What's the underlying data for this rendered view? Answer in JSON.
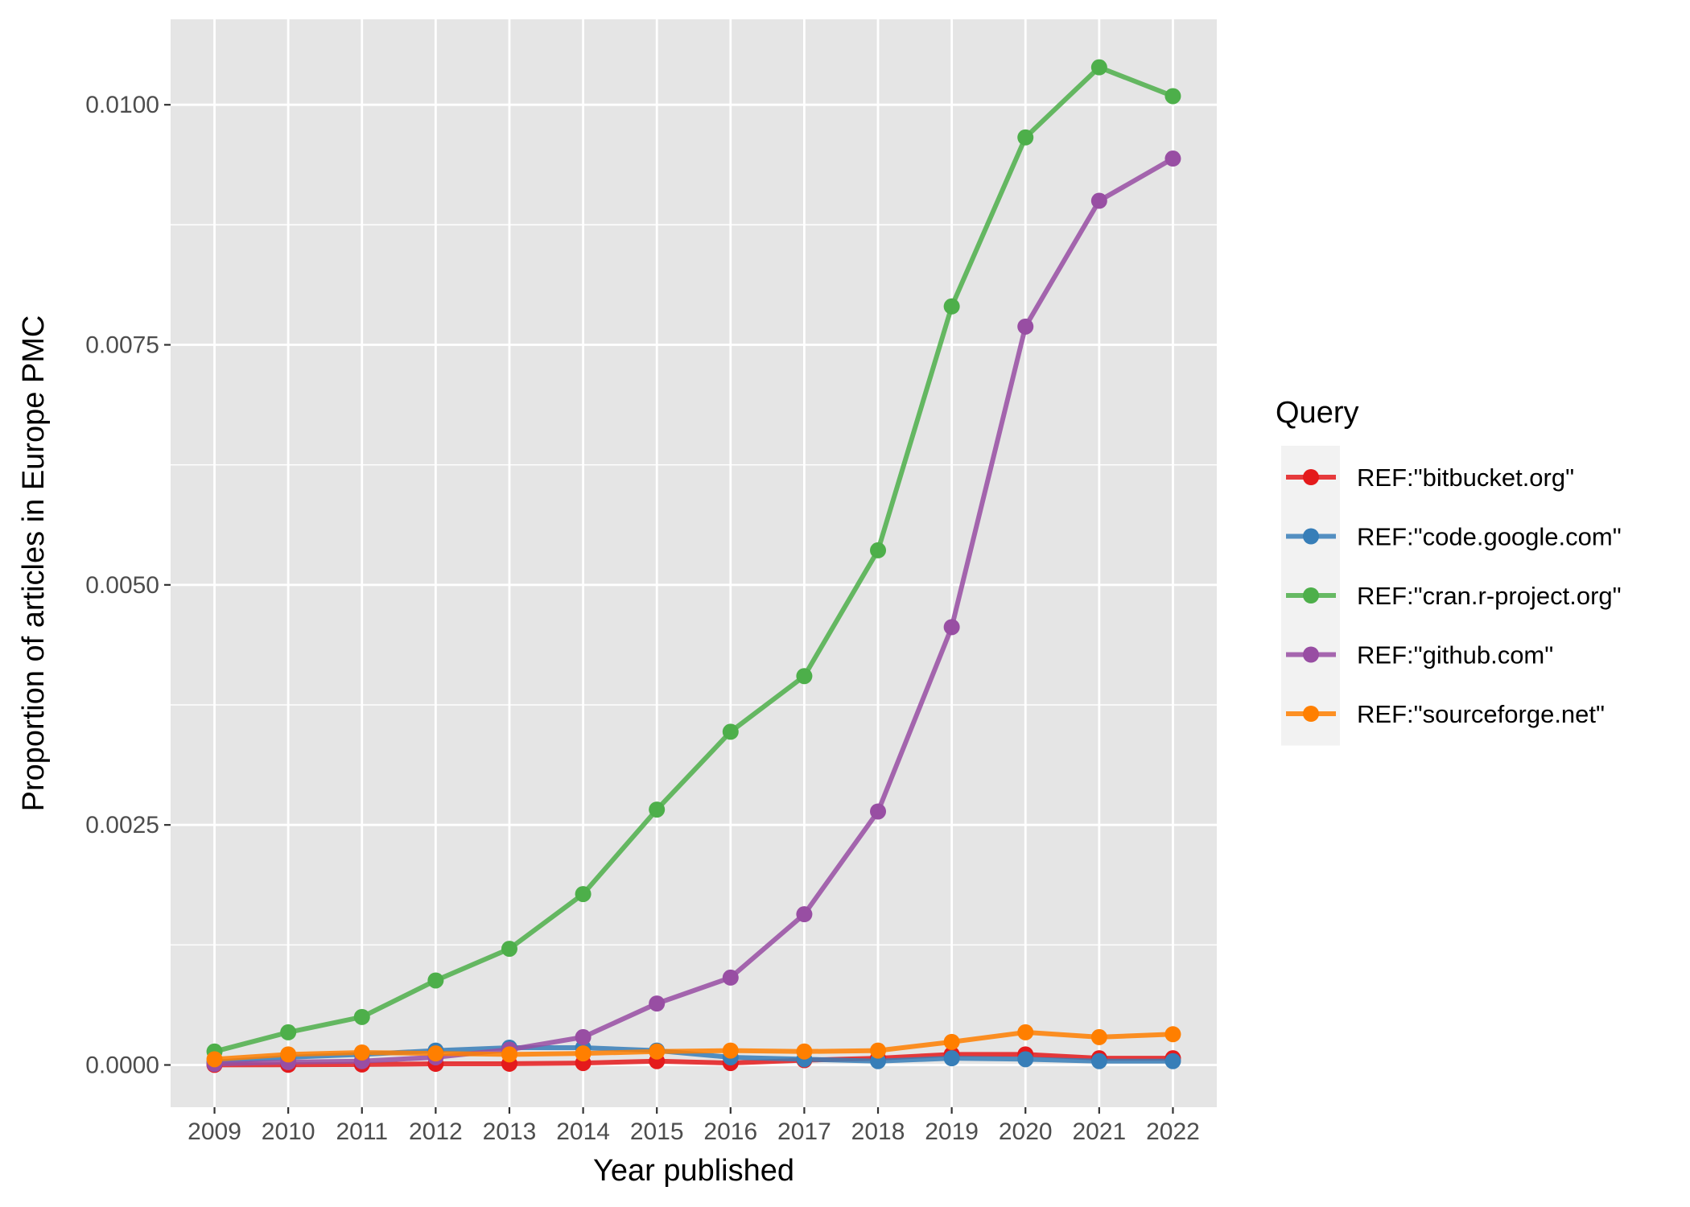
{
  "chart_data": {
    "type": "line",
    "title": "",
    "xlabel": "Year published",
    "ylabel": "Proportion of articles in Europe PMC",
    "x": [
      2009,
      2010,
      2011,
      2012,
      2013,
      2014,
      2015,
      2016,
      2017,
      2018,
      2019,
      2020,
      2021,
      2022
    ],
    "x_tick_labels": [
      "2009",
      "2010",
      "2011",
      "2012",
      "2013",
      "2014",
      "2015",
      "2016",
      "2017",
      "2018",
      "2019",
      "2020",
      "2021",
      "2022"
    ],
    "ylim": [
      -0.00044,
      0.01089
    ],
    "y_ticks": [
      0,
      0.0025,
      0.005,
      0.0075,
      0.01
    ],
    "y_tick_labels": [
      "0.0000",
      "0.0025",
      "0.0050",
      "0.0075",
      "0.0100"
    ],
    "grid": true,
    "legend": {
      "title": "Query",
      "position": "right"
    },
    "series": [
      {
        "name": "REF:\"bitbucket.org\"",
        "color": "#E41A1C",
        "values": [
          1e-06,
          2e-06,
          5e-06,
          1.2e-05,
          1.3e-05,
          2e-05,
          4e-05,
          2e-05,
          5e-05,
          7e-05,
          0.00011,
          0.00011,
          7e-05,
          7e-05
        ]
      },
      {
        "name": "REF:\"code.google.com\"",
        "color": "#377EB8",
        "values": [
          3e-05,
          8e-05,
          0.00011,
          0.00015,
          0.00018,
          0.00018,
          0.00015,
          8e-05,
          6e-05,
          4e-05,
          7e-05,
          6e-05,
          4e-05,
          4e-05
        ]
      },
      {
        "name": "REF:\"cran.r-project.org\"",
        "color": "#4DAF4A",
        "values": [
          0.00014,
          0.00034,
          0.0005,
          0.00088,
          0.00121,
          0.00178,
          0.00266,
          0.00347,
          0.00405,
          0.00536,
          0.0079,
          0.00966,
          0.01039,
          0.01009
        ]
      },
      {
        "name": "REF:\"github.com\"",
        "color": "#984EA3",
        "values": [
          1e-05,
          3e-05,
          4e-05,
          8e-05,
          0.00016,
          0.00029,
          0.00064,
          0.00091,
          0.00157,
          0.00264,
          0.00456,
          0.00769,
          0.009,
          0.00944
        ]
      },
      {
        "name": "REF:\"sourceforge.net\"",
        "color": "#FF7F00",
        "values": [
          6e-05,
          0.00011,
          0.00013,
          0.00012,
          0.00011,
          0.00012,
          0.00014,
          0.00015,
          0.00014,
          0.00015,
          0.00024,
          0.00034,
          0.00029,
          0.00032
        ]
      }
    ]
  },
  "style": {
    "panel_background": "#E5E5E5",
    "gridline_color": "#FFFFFF",
    "legend_key_background": "#F2F2F2",
    "tick_color": "#333333"
  }
}
